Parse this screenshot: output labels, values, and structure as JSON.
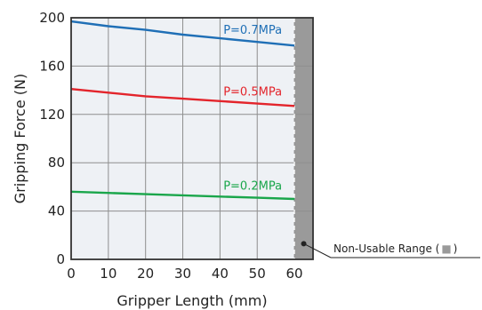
{
  "chart_data": {
    "type": "line",
    "xlabel": "Gripper Length (mm)",
    "ylabel": "Gripping Force (N)",
    "xlim": [
      0,
      65
    ],
    "ylim": [
      0,
      200
    ],
    "x_ticks": [
      0,
      10,
      20,
      30,
      40,
      50,
      60
    ],
    "y_ticks": [
      0,
      40,
      80,
      120,
      160,
      200
    ],
    "grid": true,
    "series": [
      {
        "name": "P=0.7MPa",
        "color": "#1f6fb6",
        "x": [
          0,
          10,
          20,
          30,
          40,
          50,
          60
        ],
        "y": [
          197,
          193,
          190,
          186,
          183,
          180,
          177
        ]
      },
      {
        "name": "P=0.5MPa",
        "color": "#e3242b",
        "x": [
          0,
          10,
          20,
          30,
          40,
          50,
          60
        ],
        "y": [
          141,
          138,
          135,
          133,
          131,
          129,
          127
        ]
      },
      {
        "name": "P=0.2MPa",
        "color": "#1aa64b",
        "x": [
          0,
          10,
          20,
          30,
          40,
          50,
          60
        ],
        "y": [
          56,
          55,
          54,
          53,
          52,
          51,
          50
        ]
      }
    ],
    "non_usable_range": {
      "x_from": 60,
      "x_to": 65,
      "label": "Non-Usable Range (",
      "label_suffix": ")",
      "fill_color": "#9a9a9a"
    }
  }
}
